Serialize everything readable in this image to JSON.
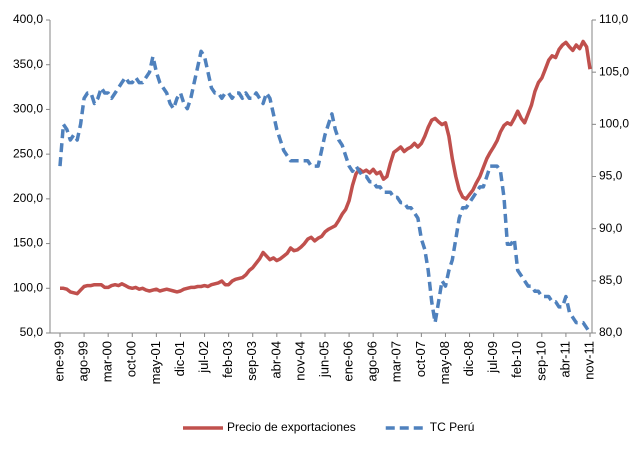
{
  "chart_data": {
    "type": "line",
    "categories": [
      "ene-99",
      null,
      null,
      null,
      null,
      null,
      null,
      "ago-99",
      null,
      null,
      null,
      null,
      null,
      null,
      "mar-00",
      null,
      null,
      null,
      null,
      null,
      null,
      "oct-00",
      null,
      null,
      null,
      null,
      null,
      null,
      "may-01",
      null,
      null,
      null,
      null,
      null,
      null,
      "dic-01",
      null,
      null,
      null,
      null,
      null,
      null,
      "jul-02",
      null,
      null,
      null,
      null,
      null,
      null,
      "feb-03",
      null,
      null,
      null,
      null,
      null,
      null,
      "sep-03",
      null,
      null,
      null,
      null,
      null,
      null,
      "abr-04",
      null,
      null,
      null,
      null,
      null,
      null,
      "nov-04",
      null,
      null,
      null,
      null,
      null,
      null,
      "jun-05",
      null,
      null,
      null,
      null,
      null,
      null,
      "ene-06",
      null,
      null,
      null,
      null,
      null,
      null,
      "ago-06",
      null,
      null,
      null,
      null,
      null,
      null,
      "mar-07",
      null,
      null,
      null,
      null,
      null,
      null,
      "oct-07",
      null,
      null,
      null,
      null,
      null,
      null,
      "may-08",
      null,
      null,
      null,
      null,
      null,
      null,
      "dic-08",
      null,
      null,
      null,
      null,
      null,
      null,
      "jul-09",
      null,
      null,
      null,
      null,
      null,
      null,
      "feb-10",
      null,
      null,
      null,
      null,
      null,
      null,
      "sep-10",
      null,
      null,
      null,
      null,
      null,
      null,
      "abr-11",
      null,
      null,
      null,
      null,
      null,
      null,
      "nov-11"
    ],
    "series": [
      {
        "name": "Precio de exportaciones",
        "color": "#c0504d",
        "axis": "y",
        "values": [
          100,
          100,
          99,
          96,
          95,
          94,
          98,
          102,
          103,
          103,
          104,
          104,
          104,
          101,
          101,
          103,
          104,
          103,
          105,
          103,
          101,
          100,
          101,
          99,
          100,
          98,
          97,
          98,
          99,
          97,
          98,
          99,
          98,
          97,
          96,
          97,
          99,
          100,
          101,
          101,
          102,
          102,
          103,
          102,
          104,
          105,
          106,
          108,
          104,
          104,
          108,
          110,
          111,
          112,
          115,
          120,
          123,
          128,
          133,
          140,
          136,
          132,
          134,
          131,
          133,
          136,
          139,
          145,
          142,
          143,
          146,
          150,
          155,
          157,
          153,
          156,
          158,
          163,
          166,
          168,
          170,
          176,
          183,
          188,
          198,
          215,
          228,
          233,
          230,
          232,
          229,
          233,
          228,
          230,
          222,
          225,
          240,
          252,
          255,
          258,
          253,
          256,
          258,
          262,
          258,
          262,
          270,
          280,
          288,
          290,
          286,
          283,
          285,
          270,
          245,
          225,
          210,
          202,
          200,
          205,
          210,
          218,
          225,
          235,
          245,
          252,
          258,
          265,
          275,
          282,
          285,
          283,
          290,
          298,
          290,
          285,
          295,
          305,
          320,
          330,
          335,
          345,
          355,
          360,
          358,
          367,
          372,
          375,
          370,
          366,
          372,
          368,
          376,
          370,
          345
        ]
      },
      {
        "name": "TC Perú",
        "color": "#4f81bd",
        "axis": "y2",
        "values": [
          96,
          100,
          99.5,
          98.5,
          99,
          98.5,
          100,
          102.5,
          103,
          103,
          102,
          102.5,
          103.5,
          103,
          103,
          102.5,
          103,
          103.5,
          104,
          104.5,
          104,
          104,
          104.5,
          104,
          104,
          104.5,
          105,
          106.5,
          105,
          104,
          103.5,
          103,
          102,
          101.5,
          102.5,
          103,
          102,
          101.5,
          102.5,
          104,
          105.5,
          107,
          106.5,
          105,
          103.5,
          103,
          103,
          102.5,
          103,
          103,
          102.5,
          103,
          103,
          102.5,
          103,
          102.5,
          102.5,
          103,
          102.5,
          102,
          103,
          102.5,
          101,
          99.5,
          98.5,
          97.5,
          97,
          96.5,
          96.5,
          96.5,
          96.5,
          96.5,
          96.5,
          96,
          96,
          96,
          97.5,
          99,
          100,
          101,
          99.5,
          98.5,
          98,
          97,
          96,
          95.5,
          96,
          95.5,
          95,
          95,
          94.5,
          94.5,
          94,
          94,
          93.5,
          93.5,
          93.5,
          93,
          93,
          92.5,
          92.5,
          92,
          92,
          91.5,
          91,
          89,
          88,
          86,
          83,
          81,
          83,
          85,
          84.5,
          86,
          87,
          89,
          91,
          92,
          92,
          92.5,
          93,
          93.5,
          94,
          94,
          95,
          96,
          96,
          96,
          95.5,
          93,
          88.5,
          88.5,
          89,
          86,
          85.5,
          85,
          84.5,
          84.5,
          84,
          84,
          83.5,
          83.5,
          83.5,
          83,
          83,
          82.5,
          82.5,
          83.5,
          82,
          81.5,
          81,
          81,
          81,
          80.5,
          80
        ]
      }
    ],
    "ylim": [
      50,
      400
    ],
    "yticks": [
      {
        "value": 50,
        "label": "50,0"
      },
      {
        "value": 100,
        "label": "100,0"
      },
      {
        "value": 150,
        "label": "150,0"
      },
      {
        "value": 200,
        "label": "200,0"
      },
      {
        "value": 250,
        "label": "250,0"
      },
      {
        "value": 300,
        "label": "300,0"
      },
      {
        "value": 350,
        "label": "350,0"
      },
      {
        "value": 400,
        "label": "400,0"
      }
    ],
    "y2lim": [
      80,
      110
    ],
    "y2ticks": [
      {
        "value": 80,
        "label": "80,0"
      },
      {
        "value": 85,
        "label": "85,0"
      },
      {
        "value": 90,
        "label": "90,0"
      },
      {
        "value": 95,
        "label": "95,0"
      },
      {
        "value": 100,
        "label": "100,0"
      },
      {
        "value": 105,
        "label": "105,0"
      },
      {
        "value": 110,
        "label": "110,0"
      }
    ],
    "grid": false,
    "legend": "bottom"
  }
}
